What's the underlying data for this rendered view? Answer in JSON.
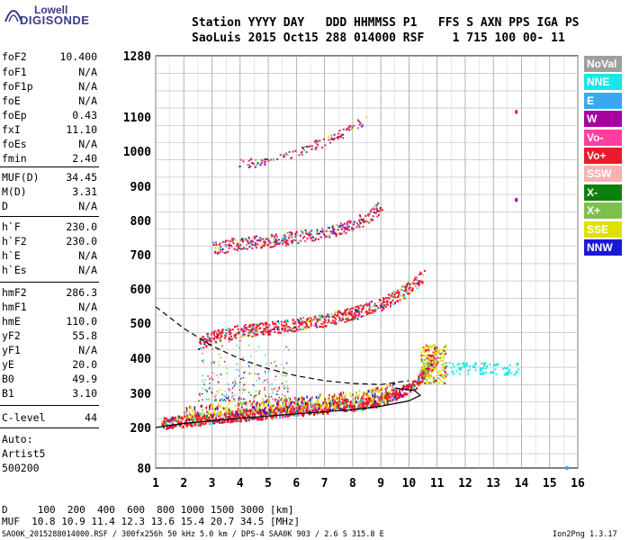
{
  "logo": {
    "line1": "Lowell",
    "line2": "DIGISONDE"
  },
  "header": {
    "labels_line": "Station YYYY DAY   DDD HHMMSS P1   FFS S AXN PPS IGA PS",
    "values_line": "SaoLuis 2015 Oct15 288 014000 RSF    1 715 100 00- 11"
  },
  "params": [
    {
      "name": "foF2",
      "value": "10.400"
    },
    {
      "name": "foF1",
      "value": "N/A"
    },
    {
      "name": "foF1p",
      "value": "N/A"
    },
    {
      "name": "foE",
      "value": "N/A"
    },
    {
      "name": "foEp",
      "value": "0.43"
    },
    {
      "name": "fxI",
      "value": "11.10"
    },
    {
      "name": "foEs",
      "value": "N/A"
    },
    {
      "name": "fmin",
      "value": "2.40"
    },
    {
      "name": "MUF(D)",
      "value": "34.45"
    },
    {
      "name": "M(D)",
      "value": "3.31"
    },
    {
      "name": "D",
      "value": "N/A"
    },
    {
      "name": "h`F",
      "value": "230.0"
    },
    {
      "name": "h`F2",
      "value": "230.0"
    },
    {
      "name": "h`E",
      "value": "N/A"
    },
    {
      "name": "h`Es",
      "value": "N/A"
    },
    {
      "name": "hmF2",
      "value": "286.3"
    },
    {
      "name": "hmF1",
      "value": "N/A"
    },
    {
      "name": "hmE",
      "value": "110.0"
    },
    {
      "name": "yF2",
      "value": "55.8"
    },
    {
      "name": "yF1",
      "value": "N/A"
    },
    {
      "name": "yE",
      "value": "20.0"
    },
    {
      "name": "B0",
      "value": "49.9"
    },
    {
      "name": "B1",
      "value": "3.10"
    }
  ],
  "c_level": {
    "name": "C-level",
    "value": "44"
  },
  "auto": {
    "line1": "Auto:",
    "line2": "Artist5",
    "line3": "500200"
  },
  "legend": [
    {
      "label": "NoVal",
      "bg": "#9e9e9e",
      "fg": "#ffffff"
    },
    {
      "label": "NNE",
      "bg": "#19e6e6",
      "fg": "#ffffff"
    },
    {
      "label": "E",
      "bg": "#3aa8f0",
      "fg": "#ffffff"
    },
    {
      "label": "W",
      "bg": "#a6009f",
      "fg": "#ffffff"
    },
    {
      "label": "Vo-",
      "bg": "#ff3fa0",
      "fg": "#ffffff"
    },
    {
      "label": "Vo+",
      "bg": "#ea1a2a",
      "fg": "#ffffff"
    },
    {
      "label": "SSW",
      "bg": "#f5b3b3",
      "fg": "#ffffff"
    },
    {
      "label": "X-",
      "bg": "#0d7f0d",
      "fg": "#ffffff"
    },
    {
      "label": "X+",
      "bg": "#7fbf4f",
      "fg": "#ffffff"
    },
    {
      "label": "SSE",
      "bg": "#e0e000",
      "fg": "#ffffff"
    },
    {
      "label": "NNW",
      "bg": "#1a1ad6",
      "fg": "#ffffff"
    }
  ],
  "footer": {
    "d_line": "D     100  200  400  600  800 1000 1500 3000 [km]",
    "muf_line": "MUF  10.8 10.9 11.4 12.3 13.6 15.4 20.7 34.5 [MHz]",
    "file_info": "SAO0K_2015288014000.RSF / 300fx256h 50 kHz 5.0 km / DPS-4 SAA0K 903 / 2.6 S 315.8 E",
    "version": "Ion2Png 1.3.17"
  },
  "chart_data": {
    "type": "scatter",
    "title": "",
    "xlabel": "",
    "ylabel": "",
    "xlim": [
      1,
      16
    ],
    "ylim": [
      80,
      1280
    ],
    "y_scale": "piecewise-linear",
    "x_ticks": [
      "1",
      "2",
      "3",
      "4",
      "5",
      "6",
      "7",
      "8",
      "9",
      "10",
      "11",
      "12",
      "13",
      "14",
      "15",
      "16"
    ],
    "y_ticks": [
      "1280",
      "1100",
      "1000",
      "900",
      "800",
      "700",
      "600",
      "500",
      "400",
      "300",
      "200",
      "80"
    ],
    "grid": true,
    "traces": [
      {
        "name": "F trace 1st hop",
        "color": "#ea1a2a",
        "points": [
          [
            1.2,
            215
          ],
          [
            2.0,
            222
          ],
          [
            3.0,
            230
          ],
          [
            4.0,
            238
          ],
          [
            5.0,
            245
          ],
          [
            6.0,
            252
          ],
          [
            7.0,
            260
          ],
          [
            8.0,
            268
          ],
          [
            9.0,
            282
          ],
          [
            9.5,
            297
          ],
          [
            10.0,
            318
          ],
          [
            10.4,
            345
          ],
          [
            10.7,
            385
          ],
          [
            10.9,
            420
          ]
        ]
      },
      {
        "name": "F trace 2nd hop",
        "color": "#ea1a2a",
        "points": [
          [
            2.5,
            440
          ],
          [
            3.0,
            462
          ],
          [
            4.0,
            478
          ],
          [
            5.0,
            487
          ],
          [
            6.0,
            497
          ],
          [
            7.0,
            510
          ],
          [
            8.0,
            530
          ],
          [
            9.0,
            558
          ],
          [
            9.5,
            578
          ],
          [
            10.0,
            605
          ],
          [
            10.5,
            640
          ]
        ]
      },
      {
        "name": "F trace 3rd hop",
        "color": "#d02050",
        "points": [
          [
            3.0,
            720
          ],
          [
            4.0,
            735
          ],
          [
            5.0,
            742
          ],
          [
            6.0,
            752
          ],
          [
            7.0,
            767
          ],
          [
            8.0,
            790
          ],
          [
            8.5,
            810
          ],
          [
            9.0,
            845
          ]
        ]
      },
      {
        "name": "F trace 4th hop",
        "color": "#c03070",
        "points": [
          [
            4.0,
            965
          ],
          [
            5.0,
            975
          ],
          [
            6.0,
            1000
          ],
          [
            7.0,
            1030
          ],
          [
            8.0,
            1070
          ],
          [
            8.5,
            1100
          ]
        ]
      }
    ],
    "profile_curve": {
      "style": "solid",
      "points": [
        [
          1.0,
          200
        ],
        [
          2.0,
          212
        ],
        [
          4.0,
          227
        ],
        [
          6.0,
          240
        ],
        [
          8.0,
          252
        ],
        [
          9.0,
          262
        ],
        [
          10.0,
          278
        ],
        [
          10.4,
          294
        ],
        [
          10.2,
          308
        ],
        [
          9.5,
          315
        ]
      ]
    },
    "mufs_curve": {
      "style": "dashed",
      "points": [
        [
          1.0,
          548
        ],
        [
          2.0,
          485
        ],
        [
          3.0,
          435
        ],
        [
          4.0,
          398
        ],
        [
          5.0,
          370
        ],
        [
          6.0,
          350
        ],
        [
          7.0,
          336
        ],
        [
          8.0,
          328
        ],
        [
          9.0,
          325
        ],
        [
          10.0,
          336
        ]
      ]
    },
    "extra_echoes": [
      {
        "x": 11.8,
        "y": 370,
        "color": "#19e6e6",
        "note": "NNE spread"
      },
      {
        "x": 13.8,
        "y": 1115,
        "color": "#ea1a2a"
      },
      {
        "x": 13.8,
        "y": 860,
        "color": "#a6009f"
      },
      {
        "x": 15.6,
        "y": 80,
        "color": "#3aa8f0"
      }
    ]
  }
}
